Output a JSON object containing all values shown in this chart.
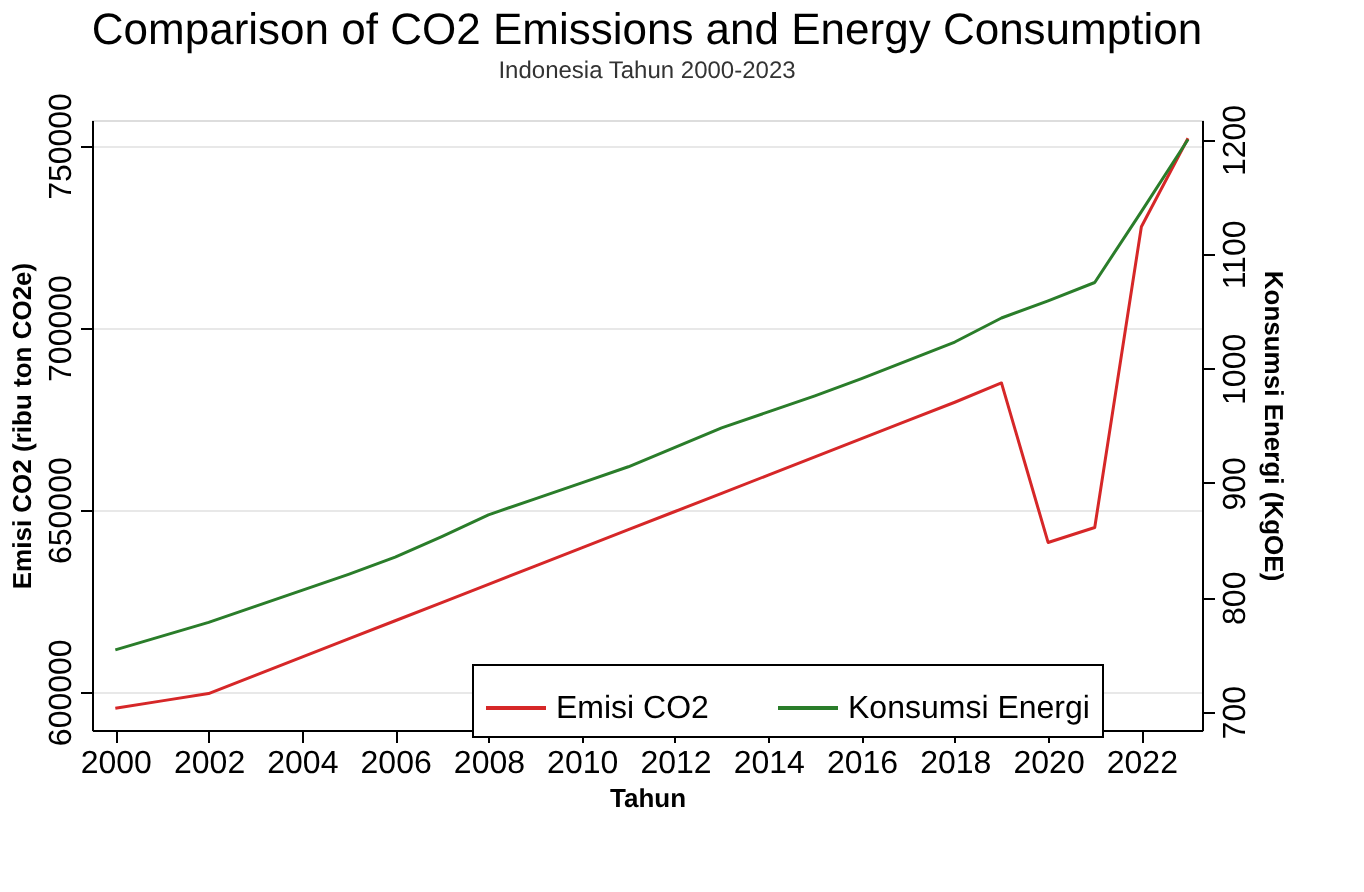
{
  "chart_data": {
    "type": "line",
    "title": "Comparison of CO2 Emissions and Energy Consumption",
    "subtitle": "Indonesia Tahun 2000-2023",
    "xlabel": "Tahun",
    "ylabel": "Emisi CO2 (ribu ton CO2e)",
    "y2label": "Konsumsi Energi (KgOE)",
    "x": [
      2000,
      2001,
      2002,
      2003,
      2004,
      2005,
      2006,
      2007,
      2008,
      2009,
      2010,
      2011,
      2012,
      2013,
      2014,
      2015,
      2016,
      2017,
      2018,
      2019,
      2020,
      2021,
      2022,
      2023
    ],
    "series": [
      {
        "name": "Emisi CO2",
        "color": "#d62728",
        "values": [
          595500,
          597500,
          599500,
          604500,
          609500,
          614500,
          619500,
          624500,
          629500,
          634500,
          639500,
          644500,
          649500,
          654500,
          659500,
          664500,
          669500,
          674500,
          679500,
          684800,
          641000,
          645100,
          727700,
          752000
        ]
      },
      {
        "name": "Konsumsi Energi",
        "color": "#2a7d2a",
        "axis": "y2",
        "values": [
          754,
          766,
          778,
          792,
          806,
          820,
          835,
          853,
          872,
          886,
          900,
          914,
          931,
          948,
          962,
          976,
          991,
          1007,
          1023,
          1044,
          1059,
          1075,
          1137,
          1200
        ]
      }
    ],
    "xlim": [
      1999.5,
      2023.3
    ],
    "xticks": [
      2000,
      2002,
      2004,
      2006,
      2008,
      2010,
      2012,
      2014,
      2016,
      2018,
      2020,
      2022
    ],
    "ylim": [
      589500,
      757000
    ],
    "yticks": [
      600000,
      650000,
      700000,
      750000
    ],
    "y2lim": [
      684,
      1217
    ],
    "y2ticks": [
      700,
      800,
      900,
      1000,
      1100,
      1200
    ],
    "grid": "y",
    "legend": "bottom",
    "marker": "none",
    "line_style": "solid"
  }
}
